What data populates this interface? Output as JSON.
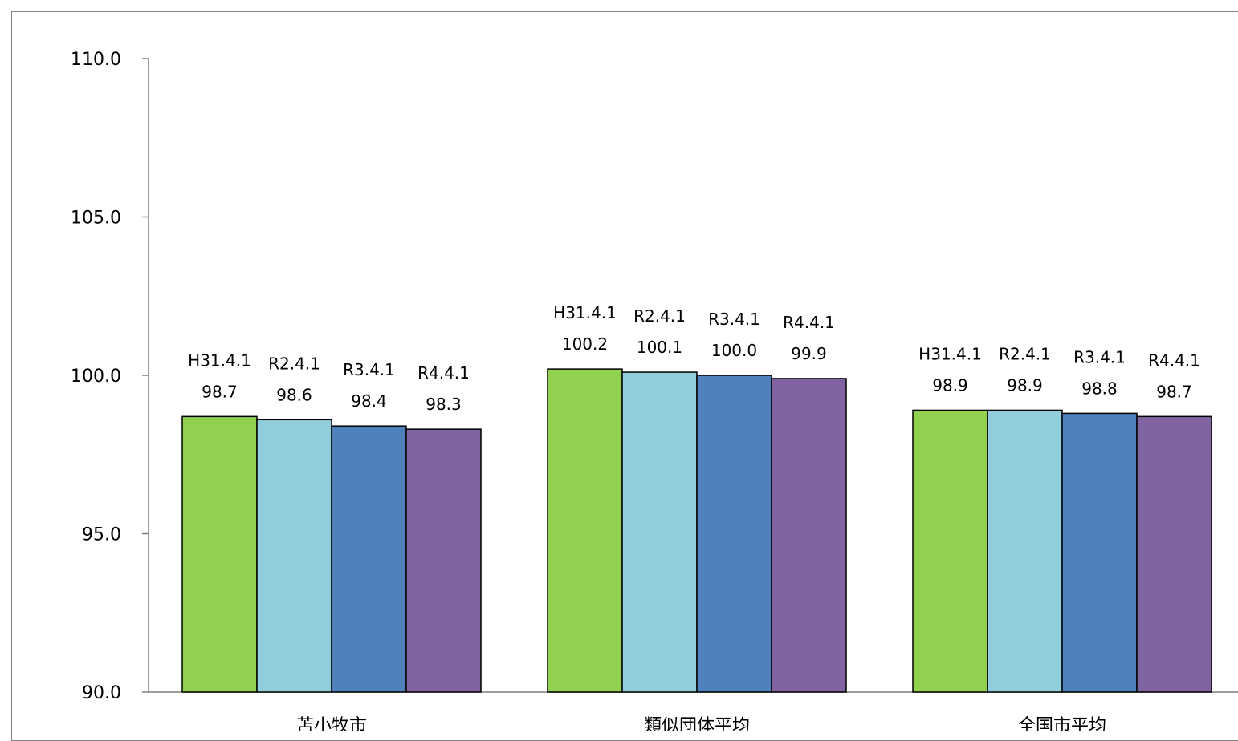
{
  "chart_data": {
    "type": "bar",
    "categories": [
      "苫小牧市",
      "類似団体平均",
      "全国市平均"
    ],
    "series": [
      {
        "name": "H31.4.1",
        "color": "#92d050",
        "values": [
          98.7,
          100.2,
          98.9
        ]
      },
      {
        "name": "R2.4.1",
        "color": "#92cddc",
        "values": [
          98.6,
          100.1,
          98.9
        ]
      },
      {
        "name": "R3.4.1",
        "color": "#4f81bd",
        "values": [
          98.4,
          100.0,
          98.8
        ]
      },
      {
        "name": "R4.4.1",
        "color": "#8064a2",
        "values": [
          98.3,
          99.9,
          98.7
        ]
      }
    ],
    "yticks": [
      "90.0",
      "95.0",
      "100.0",
      "105.0",
      "110.0"
    ],
    "ylim": [
      90,
      110
    ],
    "grid": false,
    "data_labels": true
  }
}
